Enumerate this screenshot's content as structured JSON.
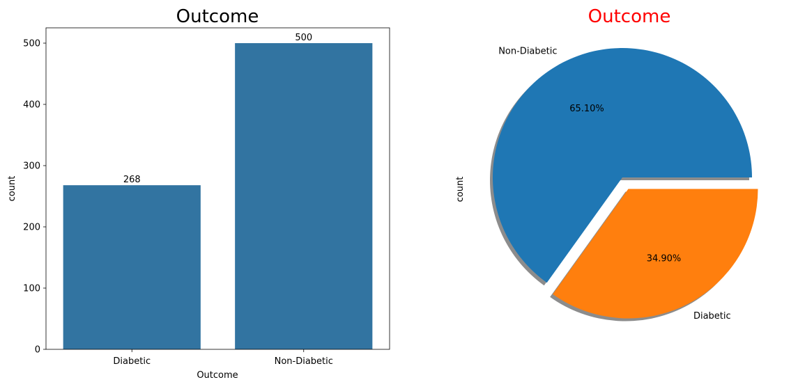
{
  "chart_data": [
    {
      "type": "bar",
      "title": "Outcome",
      "title_color": "#000000",
      "xlabel": "Outcome",
      "ylabel": "count",
      "categories": [
        "Diabetic",
        "Non-Diabetic"
      ],
      "values": [
        268,
        500
      ],
      "data_labels": [
        "268",
        "500"
      ],
      "ylim": [
        0,
        525
      ],
      "yticks": [
        0,
        100,
        200,
        300,
        400,
        500
      ],
      "bar_color": "#3274a1",
      "grid": false
    },
    {
      "type": "pie",
      "title": "Outcome",
      "title_color": "#ff0000",
      "ylabel": "count",
      "labels": [
        "Non-Diabetic",
        "Diabetic"
      ],
      "values": [
        500,
        268
      ],
      "percent_labels": [
        "65.10%",
        "34.90%"
      ],
      "explode": [
        0,
        0.1
      ],
      "shadow": true,
      "colors": [
        "#1f77b4",
        "#ff7f0e"
      ]
    }
  ]
}
